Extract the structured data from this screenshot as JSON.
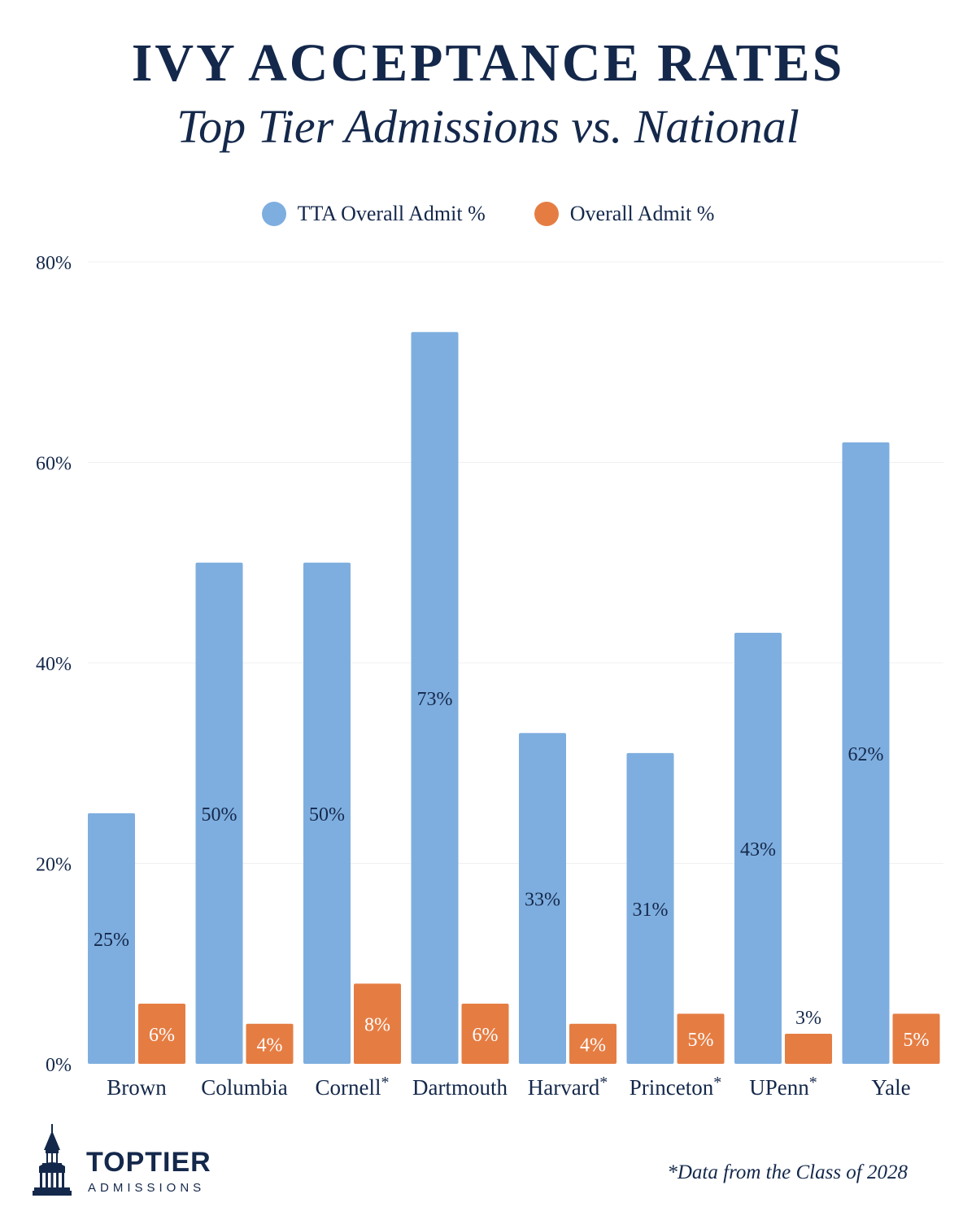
{
  "header": {
    "title": "IVY ACCEPTANCE RATES",
    "subtitle": "Top Tier Admissions vs. National"
  },
  "colors": {
    "tta": "#7eaedf",
    "overall": "#e57d43",
    "text": "#14284b",
    "grid": "#f0f0f0"
  },
  "chart_data": {
    "type": "bar",
    "title": "IVY ACCEPTANCE RATES",
    "subtitle": "Top Tier Admissions vs. National",
    "xlabel": "",
    "ylabel": "",
    "categories": [
      "Brown",
      "Columbia",
      "Cornell*",
      "Dartmouth",
      "Harvard*",
      "Princeton*",
      "UPenn*",
      "Yale"
    ],
    "series": [
      {
        "name": "TTA Overall Admit %",
        "values": [
          25,
          50,
          50,
          73,
          33,
          31,
          43,
          62
        ],
        "labels": [
          "25%",
          "50%",
          "50%",
          "73%",
          "33%",
          "31%",
          "43%",
          "62%"
        ]
      },
      {
        "name": "Overall Admit %",
        "values": [
          6,
          4,
          8,
          6,
          4,
          5,
          3,
          5
        ],
        "labels": [
          "6%",
          "4%",
          "8%",
          "6%",
          "4%",
          "5%",
          "3%",
          "5%"
        ]
      }
    ],
    "ylim": [
      0,
      80
    ],
    "yticks": [
      "0%",
      "20%",
      "40%",
      "60%",
      "80%"
    ],
    "ytick_values": [
      0,
      20,
      40,
      60,
      80
    ],
    "grid": true,
    "legend": "top-center"
  },
  "footer": {
    "brand_name": "TOPTIER",
    "brand_sub": "ADMISSIONS",
    "footnote": "*Data from the Class of 2028"
  }
}
